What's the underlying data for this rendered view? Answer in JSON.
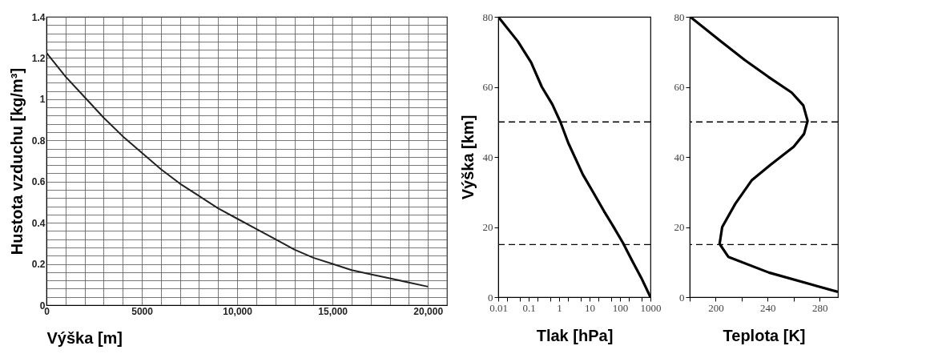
{
  "chart_data": [
    {
      "type": "line",
      "xlabel": "Výška [m]",
      "ylabel": "Hustota vzduchu [kg/m³]",
      "color": "#222222",
      "x": [
        0,
        1000,
        2000,
        3000,
        4000,
        5000,
        6000,
        7000,
        8000,
        9000,
        10000,
        11000,
        12000,
        13000,
        14000,
        15000,
        16000,
        17000,
        18000,
        19000,
        20000
      ],
      "values": [
        1.225,
        1.11,
        1.01,
        0.91,
        0.82,
        0.74,
        0.66,
        0.59,
        0.53,
        0.47,
        0.42,
        0.37,
        0.32,
        0.27,
        0.23,
        0.2,
        0.17,
        0.15,
        0.13,
        0.11,
        0.09
      ],
      "xlim": [
        0,
        21000
      ],
      "xticks": [
        0,
        {
          "value": 1000,
          "label": null
        },
        {
          "value": 2000,
          "label": null
        },
        {
          "value": 3000,
          "label": null
        },
        {
          "value": 4000,
          "label": null
        },
        5000,
        {
          "value": 6000,
          "label": null
        },
        {
          "value": 7000,
          "label": null
        },
        {
          "value": 8000,
          "label": null
        },
        {
          "value": 9000,
          "label": null
        },
        {
          "value": 10000,
          "label": "10,000"
        },
        {
          "value": 11000,
          "label": null
        },
        {
          "value": 12000,
          "label": null
        },
        {
          "value": 13000,
          "label": null
        },
        {
          "value": 14000,
          "label": null
        },
        {
          "value": 15000,
          "label": "15,000"
        },
        {
          "value": 16000,
          "label": null
        },
        {
          "value": 17000,
          "label": null
        },
        {
          "value": 18000,
          "label": null
        },
        {
          "value": 19000,
          "label": null
        },
        {
          "value": 20000,
          "label": "20,000"
        },
        {
          "value": 21000,
          "label": null
        }
      ],
      "ylim": [
        0,
        1.4
      ],
      "yticks": [
        0,
        {
          "value": 0.04,
          "label": null
        },
        {
          "value": 0.08,
          "label": null
        },
        {
          "value": 0.12,
          "label": null
        },
        {
          "value": 0.16,
          "label": null
        },
        0.2,
        {
          "value": 0.24,
          "label": null
        },
        {
          "value": 0.28,
          "label": null
        },
        {
          "value": 0.32,
          "label": null
        },
        {
          "value": 0.36,
          "label": null
        },
        0.4,
        {
          "value": 0.44,
          "label": null
        },
        {
          "value": 0.48,
          "label": null
        },
        {
          "value": 0.52,
          "label": null
        },
        {
          "value": 0.56,
          "label": null
        },
        0.6,
        {
          "value": 0.64,
          "label": null
        },
        {
          "value": 0.68,
          "label": null
        },
        {
          "value": 0.72,
          "label": null
        },
        {
          "value": 0.76,
          "label": null
        },
        0.8,
        {
          "value": 0.84,
          "label": null
        },
        {
          "value": 0.88,
          "label": null
        },
        {
          "value": 0.92,
          "label": null
        },
        {
          "value": 0.96,
          "label": null
        },
        1,
        {
          "value": 1.04,
          "label": null
        },
        {
          "value": 1.08,
          "label": null
        },
        {
          "value": 1.12,
          "label": null
        },
        {
          "value": 1.16,
          "label": null
        },
        1.2,
        {
          "value": 1.24,
          "label": null
        },
        {
          "value": 1.28,
          "label": null
        },
        {
          "value": 1.32,
          "label": null
        },
        {
          "value": 1.36,
          "label": null
        },
        1.4
      ],
      "grid": true
    },
    {
      "type": "line",
      "xlabel": "Tlak [hPa]",
      "ylabel": "Výška [km]",
      "color": "#000000",
      "log": "x",
      "x": [
        1000,
        500,
        250,
        125,
        60,
        30,
        13,
        6,
        2,
        1.1,
        0.6,
        0.27,
        0.12,
        0.044,
        0.01
      ],
      "values": [
        0,
        5.5,
        10.4,
        15.5,
        20.2,
        24.5,
        30,
        35,
        44,
        50,
        55,
        60,
        67,
        73,
        80
      ],
      "xlim": [
        0.01,
        1000
      ],
      "xticks": [
        0.01,
        {
          "value": 0.02,
          "label": null
        },
        {
          "value": 0.05,
          "label": null
        },
        0.1,
        {
          "value": 0.2,
          "label": null
        },
        {
          "value": 0.5,
          "label": null
        },
        1,
        {
          "value": 2,
          "label": null
        },
        {
          "value": 5,
          "label": null
        },
        10,
        {
          "value": 20,
          "label": null
        },
        {
          "value": 50,
          "label": null
        },
        100,
        {
          "value": 200,
          "label": null
        },
        {
          "value": 500,
          "label": null
        },
        1000
      ],
      "ylim": [
        0,
        80
      ],
      "yticks": [
        0,
        20,
        40,
        60,
        80
      ],
      "ref_lines": [
        {
          "axis": "y",
          "value": 50,
          "line_style": "dashed",
          "color": "#000000"
        },
        {
          "axis": "y",
          "value": 15,
          "line_style": "dashed",
          "color": "#000000"
        }
      ]
    },
    {
      "type": "line",
      "xlabel": "Teplota [K]",
      "color": "#000000",
      "x": [
        294,
        241,
        209.7,
        203,
        205,
        215,
        227.6,
        242,
        260,
        268,
        270.7,
        267.4,
        258.4,
        240.4,
        222.2,
        204.3,
        180.4
      ],
      "values": [
        1.5,
        7,
        11.5,
        15.2,
        20,
        26.6,
        33.3,
        37.7,
        42.9,
        46.6,
        50.3,
        54.7,
        58.4,
        62.9,
        67.7,
        72.9,
        80
      ],
      "xlim": [
        180,
        294
      ],
      "xticks": [
        {
          "value": 180,
          "label": null
        },
        200,
        {
          "value": 220,
          "label": null
        },
        240,
        {
          "value": 260,
          "label": null
        },
        280
      ],
      "ylim": [
        0,
        80
      ],
      "yticks": [
        0,
        20,
        40,
        60,
        80
      ],
      "ref_lines": [
        {
          "axis": "y",
          "value": 50,
          "line_style": "dashed",
          "color": "#000000"
        },
        {
          "axis": "y",
          "value": 15,
          "line_style": "dashed",
          "color": "#000000"
        }
      ]
    }
  ]
}
